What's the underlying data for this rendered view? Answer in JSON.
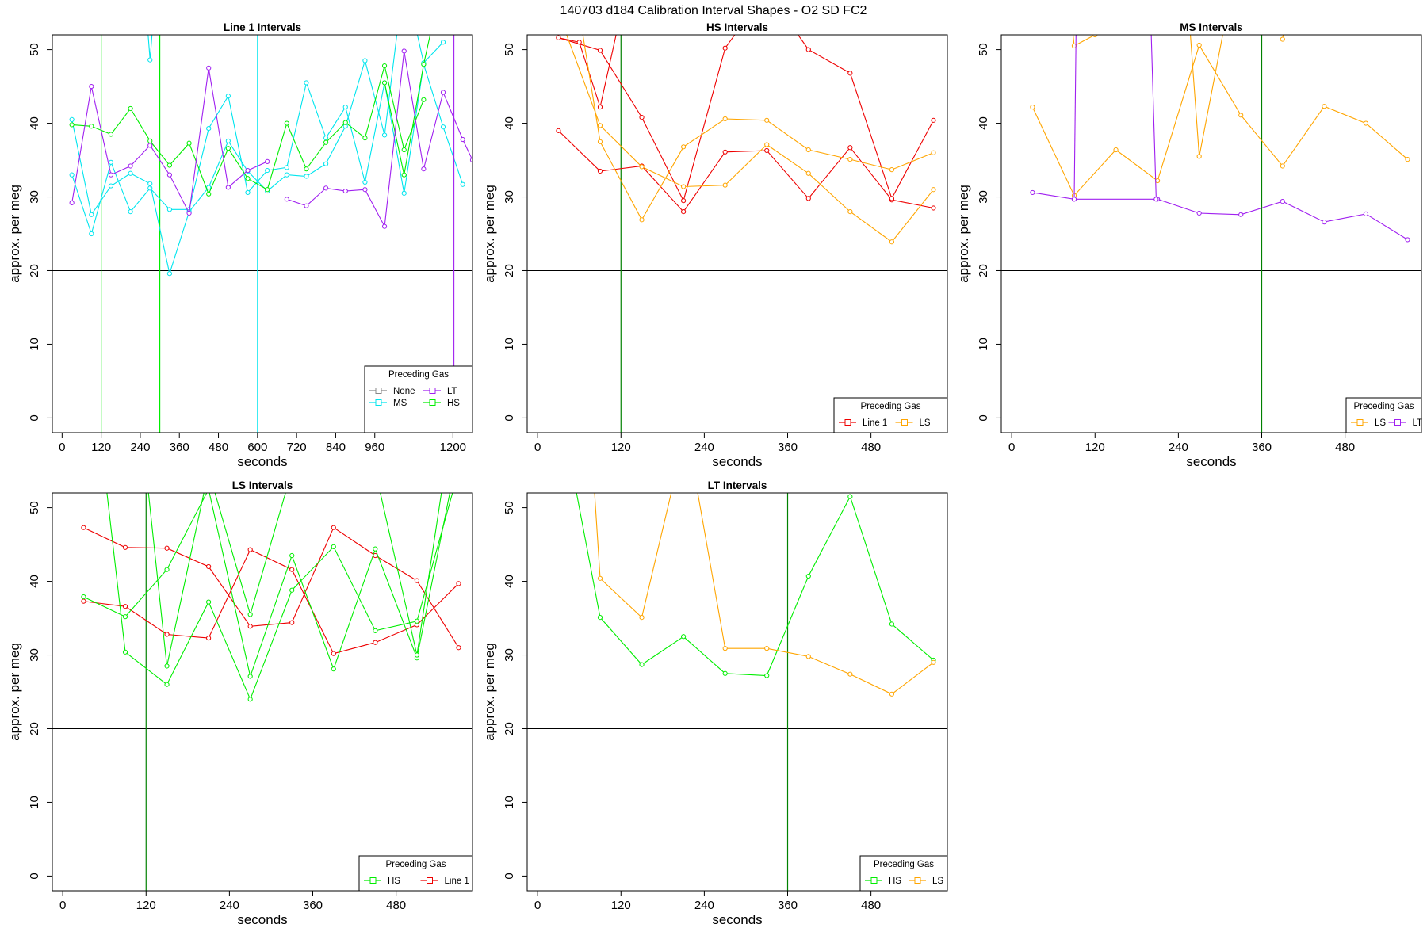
{
  "figure_title": "140703   d184   Calibration Interval Shapes - O2 SD FC2",
  "colors": {
    "None": "#888888",
    "LT": "#a020f0",
    "MS": "#00e5ee",
    "HS": "#00ee00",
    "Line 1": "#ee0000",
    "LS": "#ffa500",
    "axis": "#000000",
    "hline": "#000000",
    "vline_green": "#008000"
  },
  "chart_data": [
    {
      "type": "line",
      "title": "Line 1 Intervals",
      "xlabel": "seconds",
      "ylabel": "approx. per meg",
      "xlim": [
        -30,
        1260
      ],
      "ylim": [
        -2,
        52
      ],
      "xticks": [
        "0",
        "120",
        "240",
        "360",
        "480",
        "600",
        "720",
        "840",
        "960",
        "1200"
      ],
      "xtick_values": [
        0,
        120,
        240,
        360,
        480,
        600,
        720,
        840,
        960,
        1200
      ],
      "yticks": [
        "0",
        "10",
        "20",
        "30",
        "40",
        "50"
      ],
      "ytick_values": [
        0,
        10,
        20,
        30,
        40,
        50
      ],
      "hline": 20,
      "vlines": [
        {
          "x": 120,
          "series": "HS"
        },
        {
          "x": 300,
          "series": "HS"
        },
        {
          "x": 600,
          "series": "MS"
        }
      ],
      "legend": {
        "title": "Preceding Gas",
        "entries": [
          "None",
          "LT",
          "MS",
          "HS"
        ],
        "position": "bottom-right"
      },
      "series": [
        {
          "name": "MS",
          "x": [
            30,
            90,
            150,
            210,
            270,
            330,
            390,
            450,
            510,
            570,
            630,
            690,
            750,
            810,
            870,
            930,
            990,
            1050,
            1110,
            1170,
            1230
          ],
          "values": [
            33.0,
            25.0,
            34.7,
            28.0,
            31.2,
            28.3,
            28.3,
            39.3,
            43.7,
            30.6,
            33.6,
            34.0,
            45.5,
            38.0,
            42.2,
            32.0,
            45.5,
            30.5,
            48.0,
            39.5,
            31.7
          ]
        },
        {
          "name": "MS",
          "x": [
            30,
            90,
            150,
            210,
            270,
            330,
            390,
            450,
            510,
            570,
            630,
            690,
            750,
            810,
            870,
            930,
            990,
            1050,
            1110,
            1170
          ],
          "values": [
            40.5,
            27.6,
            31.5,
            33.2,
            31.8,
            19.6,
            28.0,
            31.3,
            37.6,
            33.5,
            30.8,
            33.0,
            32.8,
            34.5,
            39.6,
            48.5,
            38.4,
            60,
            48.2,
            51.0
          ]
        },
        {
          "name": "MS",
          "x": [
            250,
            270,
            290
          ],
          "values": [
            60,
            48.6,
            60
          ]
        },
        {
          "name": "HS",
          "x": [
            30,
            90,
            150,
            210,
            270,
            330,
            390,
            450,
            510,
            570,
            630,
            690,
            750,
            810,
            870,
            930,
            990,
            1050,
            1110
          ],
          "values": [
            39.8,
            39.6,
            38.5,
            42.0,
            37.6,
            34.3,
            37.3,
            30.4,
            36.6,
            32.5,
            31.0,
            40.0,
            33.8,
            37.4,
            40.1,
            38.0,
            47.8,
            36.4,
            43.2
          ]
        },
        {
          "name": "HS",
          "x": [
            990,
            1050,
            1110,
            1170
          ],
          "values": [
            45.5,
            33.0,
            48.0,
            60
          ]
        },
        {
          "name": "LT",
          "x": [
            30,
            90,
            150,
            210,
            270,
            330,
            390,
            450,
            510,
            570,
            630
          ],
          "values": [
            29.2,
            45.0,
            33.0,
            34.2,
            37.0,
            33.0,
            27.8,
            47.5,
            31.3,
            33.6,
            34.8
          ]
        },
        {
          "name": "LT",
          "x": [
            690,
            750,
            810,
            870,
            930,
            990,
            1050,
            1110,
            1170,
            1230,
            1260
          ],
          "values": [
            29.7,
            28.8,
            31.2,
            30.8,
            31.0,
            26.0,
            49.8,
            33.8,
            44.2,
            37.8,
            35.0
          ]
        },
        {
          "name": "LT",
          "x": [
            1203,
            1203
          ],
          "values": [
            60,
            -2
          ]
        }
      ]
    },
    {
      "type": "line",
      "title": "HS Intervals",
      "xlabel": "seconds",
      "ylabel": "approx. per meg",
      "xlim": [
        -15,
        590
      ],
      "ylim": [
        -2,
        52
      ],
      "xticks": [
        "0",
        "120",
        "240",
        "360",
        "480"
      ],
      "xtick_values": [
        0,
        120,
        240,
        360,
        480
      ],
      "yticks": [
        "0",
        "10",
        "20",
        "30",
        "40",
        "50"
      ],
      "ytick_values": [
        0,
        10,
        20,
        30,
        40,
        50
      ],
      "hline": 20,
      "vlines": [
        {
          "x": 120,
          "series": "HS"
        }
      ],
      "legend": {
        "title": "Preceding Gas",
        "entries": [
          "Line 1",
          "LS"
        ],
        "position": "bottom-right"
      },
      "series": [
        {
          "name": "Line 1",
          "x": [
            30,
            90,
            150,
            210,
            270,
            330,
            390,
            450,
            510,
            570
          ],
          "values": [
            39.0,
            33.5,
            34.2,
            28.0,
            36.1,
            36.3,
            29.8,
            36.7,
            29.6,
            28.5
          ]
        },
        {
          "name": "Line 1",
          "x": [
            30,
            90,
            150,
            210,
            270,
            330,
            390,
            450,
            510,
            570
          ],
          "values": [
            51.6,
            49.9,
            40.8,
            29.5,
            50.2,
            58,
            50.0,
            46.8,
            29.8,
            40.4
          ]
        },
        {
          "name": "Line 1",
          "x": [
            30,
            60,
            90,
            120
          ],
          "values": [
            51.6,
            51.0,
            42.2,
            55
          ]
        },
        {
          "name": "LS",
          "x": [
            30,
            90,
            150,
            210,
            270,
            330,
            390,
            450,
            510,
            570
          ],
          "values": [
            55,
            39.7,
            34.1,
            31.4,
            31.6,
            37.1,
            33.2,
            28.0,
            23.9,
            31.0
          ]
        },
        {
          "name": "LS",
          "x": [
            60,
            90,
            150,
            210,
            270,
            330,
            390,
            450,
            510,
            570
          ],
          "values": [
            55,
            37.5,
            26.9,
            36.8,
            40.6,
            40.4,
            36.4,
            35.1,
            33.7,
            36.0
          ]
        }
      ]
    },
    {
      "type": "line",
      "title": "MS Intervals",
      "xlabel": "seconds",
      "ylabel": "approx. per meg",
      "xlim": [
        -15,
        590
      ],
      "ylim": [
        -2,
        52
      ],
      "xticks": [
        "0",
        "120",
        "240",
        "360",
        "480"
      ],
      "xtick_values": [
        0,
        120,
        240,
        360,
        480
      ],
      "yticks": [
        "0",
        "10",
        "20",
        "30",
        "40",
        "50"
      ],
      "ytick_values": [
        0,
        10,
        20,
        30,
        40,
        50
      ],
      "hline": 20,
      "vlines": [
        {
          "x": 360,
          "series": "HS"
        }
      ],
      "legend": {
        "title": "Preceding Gas",
        "entries": [
          "LS",
          "LT"
        ],
        "position": "bottom-right"
      },
      "series": [
        {
          "name": "LS",
          "x": [
            30,
            90,
            150,
            210,
            270,
            330,
            390,
            450,
            510,
            570
          ],
          "values": [
            42.2,
            30.2,
            36.4,
            32.2,
            50.6,
            41.1,
            34.2,
            42.3,
            40.0,
            35.1
          ]
        },
        {
          "name": "LS",
          "x": [
            85,
            90,
            120
          ],
          "values": [
            55,
            50.5,
            52
          ]
        },
        {
          "name": "LS",
          "x": [
            255,
            270,
            310
          ],
          "values": [
            55,
            35.5,
            55
          ]
        },
        {
          "name": "LS",
          "x": [
            390,
            395
          ],
          "values": [
            51.4,
            55
          ]
        },
        {
          "name": "LT",
          "x": [
            30,
            90,
            210,
            270,
            330,
            390,
            450,
            510,
            570
          ],
          "values": [
            30.6,
            29.7,
            29.7,
            27.8,
            27.6,
            29.4,
            26.6,
            27.7,
            24.2
          ]
        },
        {
          "name": "LT",
          "x": [
            90,
            93
          ],
          "values": [
            29.7,
            55
          ]
        },
        {
          "name": "LT",
          "x": [
            200,
            208
          ],
          "values": [
            55,
            29.7
          ]
        }
      ]
    },
    {
      "type": "line",
      "title": "LS Intervals",
      "xlabel": "seconds",
      "ylabel": "approx. per meg",
      "xlim": [
        -15,
        590
      ],
      "ylim": [
        -2,
        52
      ],
      "xticks": [
        "0",
        "120",
        "240",
        "360",
        "480"
      ],
      "xtick_values": [
        0,
        120,
        240,
        360,
        480
      ],
      "yticks": [
        "0",
        "10",
        "20",
        "30",
        "40",
        "50"
      ],
      "ytick_values": [
        0,
        10,
        20,
        30,
        40,
        50
      ],
      "hline": 20,
      "vlines": [
        {
          "x": 120,
          "series": "HS"
        }
      ],
      "legend": {
        "title": "Preceding Gas",
        "entries": [
          "HS",
          "Line 1"
        ],
        "position": "bottom-right"
      },
      "series": [
        {
          "name": "Line 1",
          "x": [
            30,
            90,
            150,
            210,
            270,
            330,
            390,
            450,
            510,
            570
          ],
          "values": [
            47.3,
            44.6,
            44.5,
            42.0,
            33.9,
            34.4,
            47.3,
            43.5,
            40.1,
            31.0
          ]
        },
        {
          "name": "Line 1",
          "x": [
            30,
            90,
            150,
            210,
            270,
            330,
            390,
            450,
            510,
            570
          ],
          "values": [
            37.3,
            36.6,
            32.8,
            32.3,
            44.3,
            41.6,
            30.2,
            31.7,
            34.1,
            39.7
          ]
        },
        {
          "name": "HS",
          "x": [
            30,
            90,
            150,
            210,
            270,
            330,
            390,
            450,
            510,
            570
          ],
          "values": [
            37.9,
            35.2,
            41.6,
            52.5,
            27.1,
            43.5,
            28.1,
            44.4,
            29.6,
            58
          ]
        },
        {
          "name": "HS",
          "x": [
            60,
            90,
            150,
            210,
            270,
            330,
            390,
            450,
            510,
            570
          ],
          "values": [
            55,
            30.4,
            26.0,
            37.2,
            24.0,
            38.8,
            44.7,
            33.3,
            34.6,
            55
          ]
        },
        {
          "name": "HS",
          "x": [
            120,
            150,
            210,
            270,
            330,
            450,
            510,
            550
          ],
          "values": [
            55,
            28.5,
            55,
            35.5,
            55,
            55,
            30.0,
            55
          ]
        }
      ]
    },
    {
      "type": "line",
      "title": "LT Intervals",
      "xlabel": "seconds",
      "ylabel": "approx. per meg",
      "xlim": [
        -15,
        590
      ],
      "ylim": [
        -2,
        52
      ],
      "xticks": [
        "0",
        "120",
        "240",
        "360",
        "480"
      ],
      "xtick_values": [
        0,
        120,
        240,
        360,
        480
      ],
      "yticks": [
        "0",
        "10",
        "20",
        "30",
        "40",
        "50"
      ],
      "ytick_values": [
        0,
        10,
        20,
        30,
        40,
        50
      ],
      "hline": 20,
      "vlines": [
        {
          "x": 360,
          "series": "HS"
        }
      ],
      "legend": {
        "title": "Preceding Gas",
        "entries": [
          "HS",
          "LS"
        ],
        "position": "bottom-right"
      },
      "series": [
        {
          "name": "HS",
          "x": [
            50,
            90,
            150,
            210,
            270,
            330,
            390,
            450,
            510,
            570
          ],
          "values": [
            55,
            35.1,
            28.7,
            32.5,
            27.5,
            27.2,
            40.7,
            51.5,
            34.2,
            29.3
          ]
        },
        {
          "name": "LS",
          "x": [
            80,
            90,
            150,
            200
          ],
          "values": [
            55,
            40.4,
            35.1,
            55
          ]
        },
        {
          "name": "LS",
          "x": [
            225,
            270,
            330,
            390,
            450,
            510,
            570
          ],
          "values": [
            55,
            30.9,
            30.9,
            29.8,
            27.4,
            24.7,
            29.0
          ]
        }
      ]
    }
  ]
}
